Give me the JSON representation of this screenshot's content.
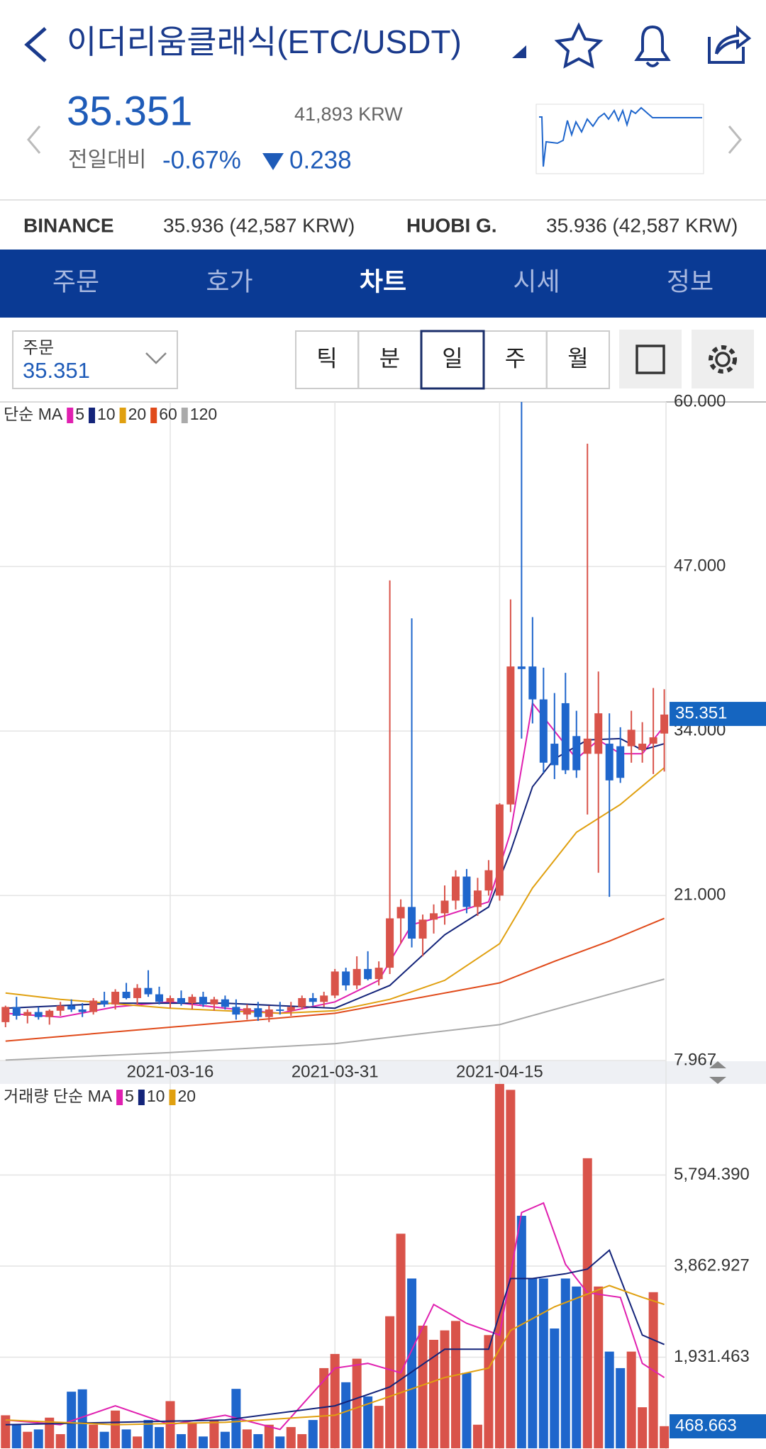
{
  "header": {
    "title": "이더리움클래식(ETC/USDT)",
    "price": "35.351",
    "krw": "41,893 KRW",
    "change_label": "전일대비",
    "change_pct": "-0.67%",
    "change": "0.238"
  },
  "exchanges": [
    {
      "name": "BINANCE",
      "value": "35.936 (42,587 KRW)"
    },
    {
      "name": "HUOBI G.",
      "value": "35.936 (42,587 KRW)"
    }
  ],
  "tabs": [
    "주문",
    "호가",
    "차트",
    "시세",
    "정보"
  ],
  "active_tab": 2,
  "order": {
    "label": "주문",
    "value": "35.351"
  },
  "periods": [
    "틱",
    "분",
    "일",
    "주",
    "월"
  ],
  "active_period": 2,
  "chart_data": [
    {
      "type": "candlestick",
      "legend_label": "단순 MA",
      "up_color": "#d9534a",
      "down_color": "#1f66cc",
      "categories": [
        null,
        null,
        null,
        null,
        null,
        null,
        null,
        null,
        null,
        null,
        null,
        null,
        null,
        null,
        null,
        "2021-03-16",
        null,
        null,
        null,
        null,
        null,
        null,
        null,
        null,
        null,
        null,
        null,
        null,
        null,
        null,
        "2021-03-31",
        null,
        null,
        null,
        null,
        null,
        null,
        null,
        null,
        null,
        null,
        null,
        null,
        null,
        null,
        "2021-04-15",
        null,
        null,
        null,
        null,
        null,
        null,
        null,
        null,
        null,
        null,
        null,
        null,
        null,
        null,
        null
      ],
      "open": [
        11.0,
        12.2,
        11.5,
        11.8,
        11.4,
        11.9,
        12.3,
        12.0,
        11.8,
        12.7,
        12.4,
        13.4,
        12.9,
        13.7,
        13.2,
        12.6,
        12.9,
        12.5,
        13.0,
        12.4,
        12.8,
        12.2,
        11.6,
        12.1,
        11.4,
        12.0,
        11.9,
        12.2,
        12.9,
        12.6,
        13.1,
        15.0,
        13.9,
        15.2,
        14.4,
        15.3,
        19.2,
        20.1,
        17.6,
        19.1,
        19.6,
        20.6,
        22.5,
        20.1,
        21.4,
        21.0,
        28.2,
        39.1,
        39.1,
        36.5,
        33.0,
        36.2,
        33.6,
        32.2,
        32.2,
        33.0,
        32.8,
        32.8,
        32.5,
        33.0,
        33.8
      ],
      "high": [
        12.3,
        13.0,
        12.0,
        12.2,
        12.0,
        12.6,
        12.8,
        12.5,
        12.9,
        13.4,
        13.6,
        14.1,
        14.0,
        15.1,
        13.8,
        13.1,
        13.5,
        13.2,
        13.4,
        13.0,
        13.1,
        12.8,
        12.4,
        12.6,
        12.3,
        12.6,
        12.6,
        13.1,
        13.3,
        13.4,
        15.2,
        15.3,
        16.2,
        16.6,
        15.8,
        45.9,
        20.7,
        42.9,
        19.5,
        20.3,
        21.8,
        23.0,
        23.1,
        22.4,
        23.8,
        28.3,
        44.4,
        60.0,
        43.0,
        39.0,
        37.0,
        38.6,
        35.6,
        56.7,
        38.7,
        35.4,
        34.3,
        35.6,
        34.7,
        37.4,
        37.3
      ],
      "low": [
        10.6,
        11.2,
        10.9,
        11.2,
        10.8,
        11.5,
        11.8,
        11.4,
        11.6,
        12.2,
        12.0,
        12.8,
        12.4,
        13.0,
        12.4,
        12.1,
        12.3,
        12.0,
        12.2,
        11.9,
        12.0,
        11.2,
        11.2,
        11.1,
        11.0,
        11.6,
        11.5,
        12.0,
        12.3,
        12.2,
        12.9,
        13.5,
        13.6,
        14.3,
        13.9,
        14.8,
        17.2,
        16.9,
        16.2,
        18.0,
        18.7,
        19.9,
        19.6,
        19.4,
        21.0,
        20.6,
        27.6,
        33.4,
        34.6,
        30.7,
        30.2,
        30.6,
        30.3,
        27.4,
        22.8,
        20.9,
        29.9,
        31.5,
        31.5,
        30.6,
        30.8
      ],
      "close": [
        12.2,
        11.5,
        11.8,
        11.4,
        11.9,
        12.3,
        12.0,
        11.8,
        12.7,
        12.4,
        13.4,
        12.9,
        13.7,
        13.2,
        12.6,
        12.9,
        12.5,
        13.0,
        12.4,
        12.8,
        12.2,
        11.6,
        12.1,
        11.4,
        12.0,
        11.9,
        12.2,
        12.9,
        12.6,
        13.1,
        15.0,
        13.9,
        15.2,
        14.4,
        15.3,
        19.2,
        20.1,
        17.6,
        19.1,
        19.6,
        20.6,
        22.5,
        20.1,
        21.4,
        23.0,
        28.2,
        39.1,
        38.9,
        36.5,
        31.5,
        31.3,
        30.9,
        30.9,
        33.4,
        35.4,
        30.1,
        30.3,
        34.1,
        33.0,
        33.5,
        35.3
      ],
      "ma": [
        {
          "name": "5",
          "color": "#e020b0",
          "x": [
            0,
            5,
            10,
            15,
            20,
            25,
            30,
            34,
            37,
            40,
            44,
            46,
            48,
            50,
            52,
            54,
            56,
            58,
            60
          ],
          "values": [
            11.7,
            11.4,
            12.2,
            12.6,
            12.1,
            11.7,
            12.6,
            14.3,
            18.7,
            19.4,
            20.5,
            26.0,
            36.2,
            34.0,
            31.8,
            33.3,
            32.2,
            32.2,
            34.4
          ]
        },
        {
          "name": "10",
          "color": "#14247a",
          "x": [
            0,
            10,
            20,
            30,
            35,
            40,
            44,
            46,
            48,
            50,
            53,
            56,
            58,
            60
          ],
          "values": [
            12.1,
            12.5,
            12.5,
            12.1,
            13.9,
            17.9,
            20.1,
            24.5,
            29.6,
            31.8,
            33.3,
            33.4,
            32.5,
            33.0
          ]
        },
        {
          "name": "20",
          "color": "#e0a010",
          "x": [
            0,
            5,
            15,
            25,
            30,
            35,
            40,
            45,
            48,
            52,
            56,
            60
          ],
          "values": [
            13.3,
            12.8,
            12.1,
            11.7,
            11.9,
            12.8,
            14.3,
            17.2,
            21.6,
            26.0,
            28.2,
            31.1
          ]
        },
        {
          "name": "60",
          "color": "#e04a1a",
          "x": [
            0,
            15,
            30,
            45,
            50,
            55,
            60
          ],
          "values": [
            9.5,
            10.6,
            11.7,
            14.1,
            15.8,
            17.4,
            19.2
          ]
        },
        {
          "name": "120",
          "color": "#aaaaaa",
          "x": [
            0,
            15,
            30,
            45,
            60
          ],
          "values": [
            8.0,
            8.6,
            9.3,
            10.8,
            14.4
          ]
        }
      ],
      "ylim": [
        7.967,
        60
      ],
      "yticks": [
        {
          "value": 60,
          "label": "60.000"
        },
        {
          "value": 47,
          "label": "47.000"
        },
        {
          "value": 34,
          "label": "34.000"
        },
        {
          "value": 21,
          "label": "21.000"
        },
        7.967
      ],
      "current": 35.351,
      "grid": true
    },
    {
      "type": "bar",
      "legend_label": "거래량 단순 MA",
      "values": [
        700,
        500,
        350,
        400,
        650,
        300,
        1200,
        1250,
        500,
        350,
        800,
        400,
        250,
        600,
        450,
        1000,
        300,
        550,
        250,
        600,
        350,
        1260,
        400,
        300,
        500,
        250,
        450,
        300,
        600,
        1700,
        2000,
        1400,
        1900,
        1100,
        900,
        2800,
        4550,
        3600,
        2600,
        2300,
        2500,
        2700,
        1600,
        500,
        2400,
        7725,
        7600,
        4930,
        3600,
        3600,
        2540,
        3600,
        3430,
        6150,
        3430,
        2050,
        1700,
        2050,
        870,
        3310,
        468.663
      ],
      "ma": [
        {
          "name": "5",
          "color": "#e020b0",
          "x": [
            0,
            5,
            10,
            15,
            20,
            25,
            30,
            33,
            36,
            39,
            42,
            45,
            47,
            49,
            51,
            53,
            56,
            58,
            60
          ],
          "values": [
            600,
            500,
            900,
            500,
            700,
            400,
            1700,
            1800,
            1600,
            3050,
            2650,
            2400,
            5000,
            5200,
            3900,
            3300,
            3200,
            1800,
            1500
          ]
        },
        {
          "name": "10",
          "color": "#14247a",
          "x": [
            0,
            10,
            20,
            30,
            35,
            40,
            44,
            46,
            48,
            51,
            53,
            55,
            58,
            60
          ],
          "values": [
            500,
            550,
            600,
            900,
            1300,
            2100,
            2100,
            3600,
            3600,
            3700,
            3800,
            4200,
            2400,
            2200
          ]
        },
        {
          "name": "20",
          "color": "#e0a010",
          "x": [
            0,
            10,
            20,
            30,
            35,
            40,
            44,
            46,
            50,
            55,
            58,
            60
          ],
          "values": [
            600,
            500,
            550,
            700,
            1100,
            1500,
            1700,
            2500,
            3000,
            3450,
            3200,
            3050
          ]
        }
      ],
      "ylim": [
        0,
        7725.853
      ],
      "yticks": [
        {
          "value": 5794.39,
          "label": "5,794.390"
        },
        {
          "value": 3862.927,
          "label": "3,862.927"
        },
        {
          "value": 1931.463,
          "label": "1,931.463"
        }
      ],
      "current": 468.663,
      "grid": true
    }
  ]
}
